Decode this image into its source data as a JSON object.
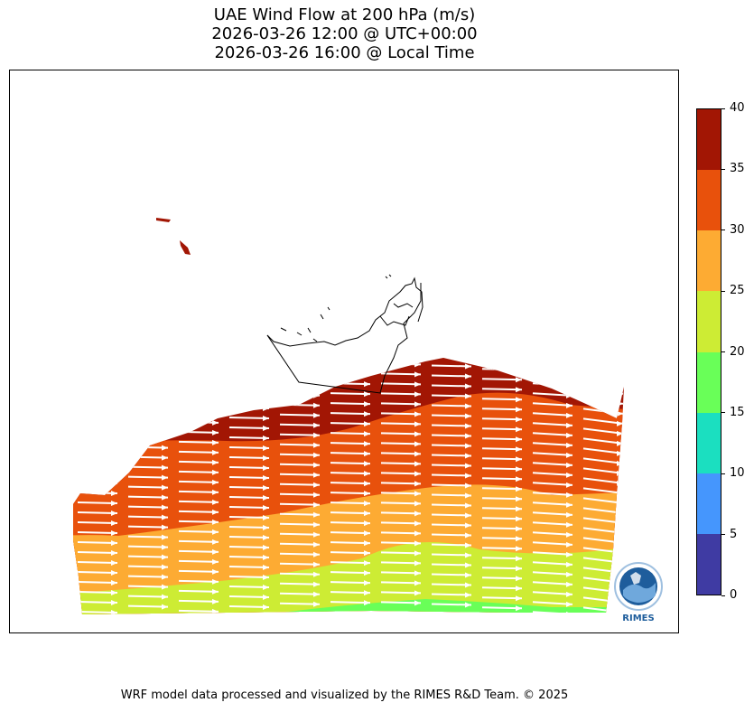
{
  "title": {
    "line1": "UAE Wind Flow at 200 hPa (m/s)",
    "line2": "2026-03-26 12:00 @ UTC+00:00",
    "line3": "2026-03-26 16:00 @ Local Time"
  },
  "colorbar": {
    "levels": [
      {
        "from": 0,
        "to": 5,
        "color": "#3f3ba3"
      },
      {
        "from": 5,
        "to": 10,
        "color": "#4596fd"
      },
      {
        "from": 10,
        "to": 15,
        "color": "#1bdfc0"
      },
      {
        "from": 15,
        "to": 20,
        "color": "#69ff58"
      },
      {
        "from": 20,
        "to": 25,
        "color": "#cdec34"
      },
      {
        "from": 25,
        "to": 30,
        "color": "#fdab33"
      },
      {
        "from": 30,
        "to": 35,
        "color": "#e8510c"
      },
      {
        "from": 35,
        "to": 40,
        "color": "#a21604"
      }
    ],
    "ticks": [
      "0",
      "5",
      "10",
      "15",
      "20",
      "25",
      "30",
      "35",
      "40"
    ]
  },
  "map": {
    "units": "m/s",
    "field_colors": {
      "dark_red": "#a21604",
      "red_orange": "#e8510c",
      "orange": "#fdab33",
      "yellow_green": "#cdec34",
      "green": "#69ff58"
    },
    "border_color": "#000000",
    "vector_color": "#ffffff"
  },
  "logo": {
    "text": "RIMES",
    "color": "#1e5d9c"
  },
  "footer": {
    "text": "WRF model data processed and visualized by the RIMES R&D Team. © 2025"
  }
}
